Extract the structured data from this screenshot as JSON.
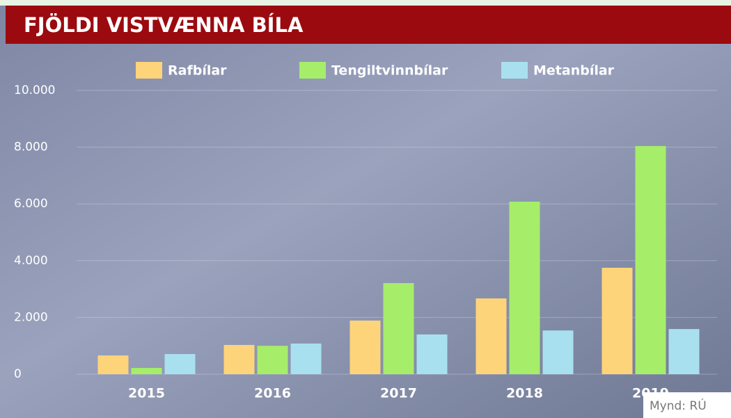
{
  "chart_data": {
    "type": "bar",
    "title": "FJÖLDI VISTVÆNNA BÍLA",
    "categories": [
      "2015",
      "2016",
      "2017",
      "2018",
      "2019"
    ],
    "series": [
      {
        "name": "Rafbílar",
        "color": "#fdd47a",
        "values": [
          660,
          1030,
          1890,
          2670,
          3750
        ]
      },
      {
        "name": "Tengiltvinnbílar",
        "color": "#a6ed6a",
        "values": [
          220,
          1000,
          3210,
          6080,
          8040
        ]
      },
      {
        "name": "Metanbílar",
        "color": "#a9e0f0",
        "values": [
          710,
          1080,
          1400,
          1540,
          1590
        ]
      }
    ],
    "ylim": [
      0,
      10000
    ],
    "yticks": [
      0,
      {
        "value": 2000,
        "label": "2.000"
      },
      {
        "value": 4000,
        "label": "4.000"
      },
      {
        "value": 6000,
        "label": "6.000"
      },
      {
        "value": 8000,
        "label": "8.000"
      },
      {
        "value": 10000,
        "label": "10.000"
      }
    ],
    "grid": true,
    "credit": "Mynd: RÚ"
  }
}
